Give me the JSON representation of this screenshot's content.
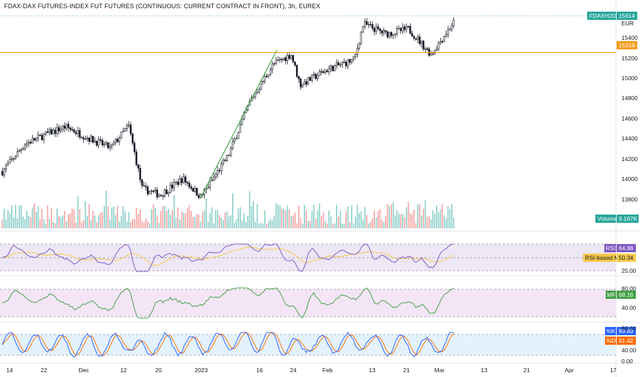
{
  "header": {
    "title": "FDAX-DAX FUTURES-INDEX FUT FUTURES (CONTINUOUS: CURRENT CONTRACT IN FRONT), 3h, EUREX"
  },
  "price_axis": {
    "currency": "EUR",
    "ticks": [
      "15400",
      "15200",
      "15000",
      "14800",
      "14600",
      "14400",
      "14200",
      "14000",
      "13800"
    ]
  },
  "badges": {
    "symbol_label": "FDAXH2023",
    "symbol_value": "15614",
    "hline_value": "15319",
    "volume_label": "Volume",
    "volume_value": "9.167K",
    "rsi_label": "RSI",
    "rsi_value": "64.88",
    "rsi_ma_label": "RSI-based MA",
    "rsi_ma_value": "50.34",
    "mf_label": "MF",
    "mf_value": "68.16",
    "k_label": "%K",
    "k_value": "89.89",
    "d_label": "%D",
    "d_value": "61.42"
  },
  "rsi_axis": {
    "ticks": [
      "25.00"
    ]
  },
  "mf_axis": {
    "ticks": [
      "80.00",
      "40.00"
    ]
  },
  "stoch_axis": {
    "ticks": [
      "80.00",
      "40.00",
      "0.00"
    ]
  },
  "time_axis": {
    "labels": [
      "14",
      "22",
      "Dec",
      "12",
      "20",
      "2023",
      "16",
      "24",
      "Feb",
      "13",
      "21",
      "Mar",
      "13",
      "21",
      "Apr",
      "17"
    ]
  },
  "colors": {
    "up": "#26a69a",
    "down": "#ef5350",
    "candle": "#131722",
    "hline": "#f59c1a",
    "trendline": "#4caf50",
    "rsi_line": "#7e57c2",
    "rsi_ma": "#f7c948",
    "rsi_band": "#ede7f6",
    "mf_line": "#43a047",
    "mf_band": "#f3e5f5",
    "stoch_k": "#2962ff",
    "stoch_d": "#ff6d00",
    "stoch_band": "#e3f2fd"
  },
  "chart_data": [
    {
      "type": "candlestick",
      "title": "FDAX-DAX FUTURES-INDEX FUT FUTURES (CONTINUOUS: CURRENT CONTRACT IN FRONT), 3h, EUREX",
      "ylabel": "EUR",
      "ylim": [
        13700,
        15800
      ],
      "x": [
        "14",
        "22",
        "Dec",
        "12",
        "20",
        "2023",
        "16",
        "24",
        "Feb",
        "13",
        "21",
        "Mar"
      ],
      "close_path": [
        [
          0,
          14150
        ],
        [
          0.05,
          14420
        ],
        [
          0.1,
          14520
        ],
        [
          0.14,
          14590
        ],
        [
          0.19,
          14480
        ],
        [
          0.24,
          14380
        ],
        [
          0.28,
          14600
        ],
        [
          0.31,
          13980
        ],
        [
          0.35,
          13920
        ],
        [
          0.4,
          14080
        ],
        [
          0.44,
          13900
        ],
        [
          0.5,
          14300
        ],
        [
          0.55,
          14850
        ],
        [
          0.6,
          15200
        ],
        [
          0.64,
          15300
        ],
        [
          0.66,
          15000
        ],
        [
          0.72,
          15150
        ],
        [
          0.78,
          15250
        ],
        [
          0.8,
          15600
        ],
        [
          0.85,
          15500
        ],
        [
          0.9,
          15550
        ],
        [
          0.95,
          15300
        ],
        [
          1.0,
          15614
        ]
      ],
      "last": 15614,
      "horizontal_line": 15319,
      "trendline": {
        "from": 13890,
        "to": 15340
      }
    },
    {
      "type": "bar",
      "title": "Volume",
      "last": 9167
    },
    {
      "type": "line",
      "title": "RSI",
      "series": [
        {
          "name": "RSI",
          "last": 64.88
        },
        {
          "name": "RSI-based MA",
          "last": 50.34
        }
      ],
      "ticks": [
        25
      ]
    },
    {
      "type": "line",
      "title": "MF",
      "series": [
        {
          "name": "MF",
          "last": 68.16
        }
      ],
      "ticks": [
        80,
        40
      ]
    },
    {
      "type": "line",
      "title": "Stochastic",
      "series": [
        {
          "name": "%K",
          "last": 89.89
        },
        {
          "name": "%D",
          "last": 61.42
        }
      ],
      "ticks": [
        80,
        40,
        0
      ]
    }
  ]
}
